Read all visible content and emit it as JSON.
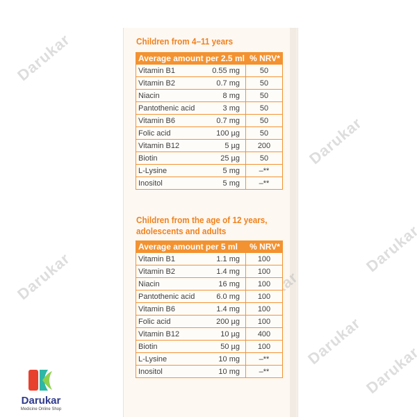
{
  "section1": {
    "heading": "Children from 4–11 years",
    "header": {
      "label": "Average amount per 2.5 ml",
      "nrv": "% NRV*"
    },
    "rows": [
      {
        "name": "Vitamin B1",
        "amount": "0.55 mg",
        "nrv": "50"
      },
      {
        "name": "Vitamin B2",
        "amount": "0.7 mg",
        "nrv": "50"
      },
      {
        "name": "Niacin",
        "amount": "8 mg",
        "nrv": "50"
      },
      {
        "name": "Pantothenic acid",
        "amount": "3 mg",
        "nrv": "50"
      },
      {
        "name": "Vitamin B6",
        "amount": "0.7 mg",
        "nrv": "50"
      },
      {
        "name": "Folic acid",
        "amount": "100 µg",
        "nrv": "50"
      },
      {
        "name": "Vitamin B12",
        "amount": "5 µg",
        "nrv": "200"
      },
      {
        "name": "Biotin",
        "amount": "25 µg",
        "nrv": "50"
      },
      {
        "name": "L-Lysine",
        "amount": "5 mg",
        "nrv": "–**"
      },
      {
        "name": "Inositol",
        "amount": "5 mg",
        "nrv": "–**"
      }
    ]
  },
  "section2": {
    "heading_line1": "Children from the age of 12 years,",
    "heading_line2": "adolescents and adults",
    "header": {
      "label": "Average amount per 5 ml",
      "nrv": "% NRV*"
    },
    "rows": [
      {
        "name": "Vitamin B1",
        "amount": "1.1 mg",
        "nrv": "100"
      },
      {
        "name": "Vitamin B2",
        "amount": "1.4 mg",
        "nrv": "100"
      },
      {
        "name": "Niacin",
        "amount": "16 mg",
        "nrv": "100"
      },
      {
        "name": "Pantothenic acid",
        "amount": "6.0 mg",
        "nrv": "100"
      },
      {
        "name": "Vitamin B6",
        "amount": "1.4 mg",
        "nrv": "100"
      },
      {
        "name": "Folic acid",
        "amount": "200 µg",
        "nrv": "100"
      },
      {
        "name": "Vitamin B12",
        "amount": "10 µg",
        "nrv": "400"
      },
      {
        "name": "Biotin",
        "amount": "50 µg",
        "nrv": "100"
      },
      {
        "name": "L-Lysine",
        "amount": "10 mg",
        "nrv": "–**"
      },
      {
        "name": "Inositol",
        "amount": "10 mg",
        "nrv": "–**"
      }
    ]
  },
  "watermark": "Darukar",
  "logo": {
    "name": "Darukar",
    "tagline": "Medicine Online Shop"
  },
  "colors": {
    "accent": "#f39230",
    "heading": "#f0821e",
    "brand": "#2e3a8c"
  }
}
